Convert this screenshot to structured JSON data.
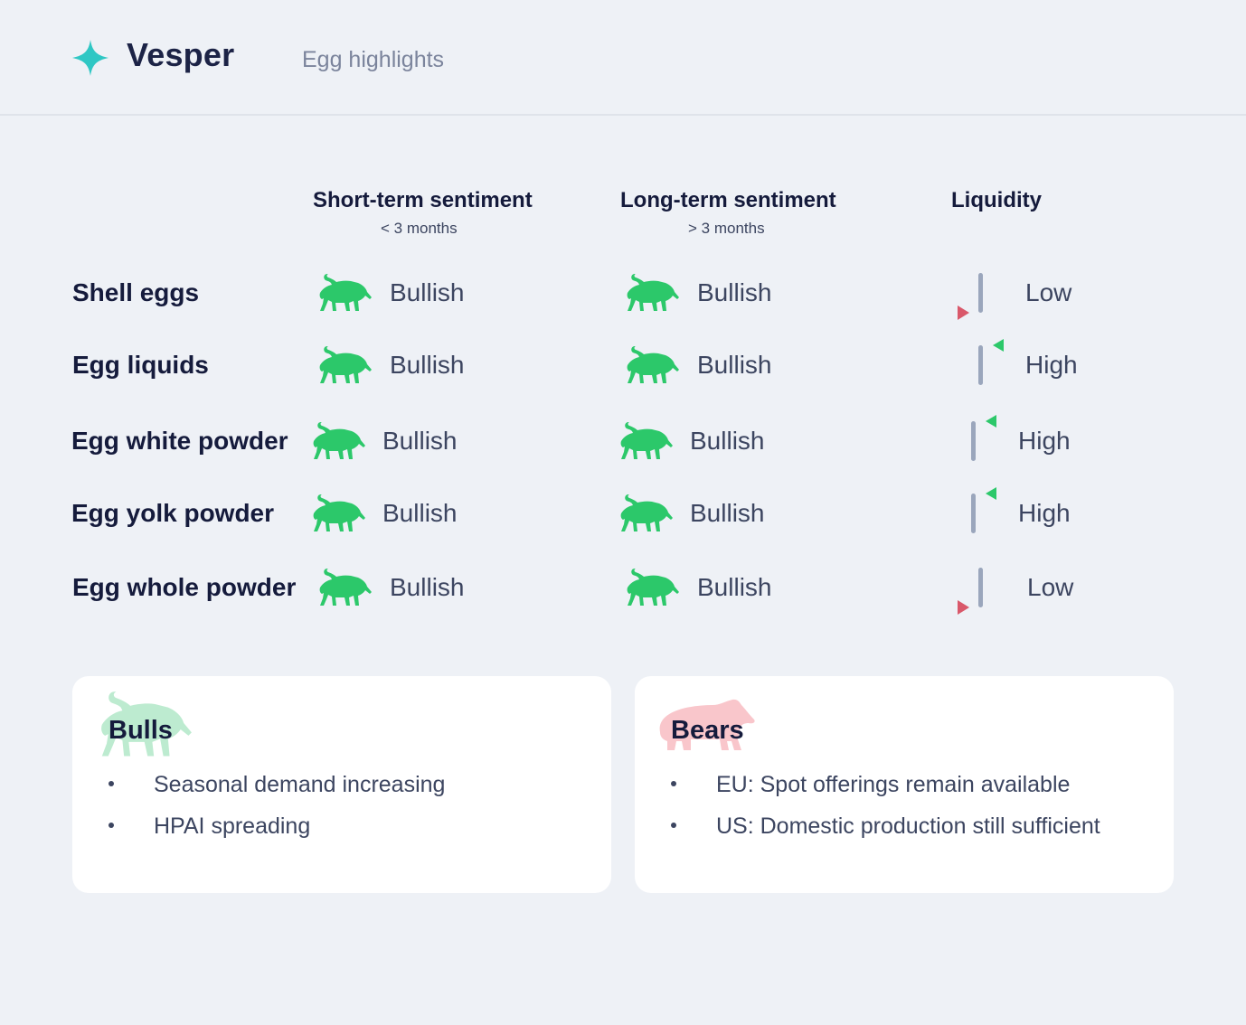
{
  "header": {
    "brand": "Vesper",
    "title": "Egg highlights"
  },
  "columns": {
    "short": {
      "label": "Short-term sentiment",
      "sub": "< 3 months"
    },
    "long": {
      "label": "Long-term sentiment",
      "sub": "> 3 months"
    },
    "liquidity": {
      "label": "Liquidity"
    }
  },
  "rows": [
    {
      "name": "Shell eggs",
      "short": "Bullish",
      "long": "Bullish",
      "liquidity": "Low",
      "liquidity_trend": "down"
    },
    {
      "name": "Egg liquids",
      "short": "Bullish",
      "long": "Bullish",
      "liquidity": "High",
      "liquidity_trend": "up"
    },
    {
      "name": "Egg white powder",
      "short": "Bullish",
      "long": "Bullish",
      "liquidity": "High",
      "liquidity_trend": "up"
    },
    {
      "name": "Egg yolk powder",
      "short": "Bullish",
      "long": "Bullish",
      "liquidity": "High",
      "liquidity_trend": "up"
    },
    {
      "name": "Egg whole powder",
      "short": "Bullish",
      "long": "Bullish",
      "liquidity": "Low",
      "liquidity_trend": "down"
    }
  ],
  "cards": {
    "bulls": {
      "title": "Bulls",
      "items": [
        "Seasonal demand increasing",
        "HPAI spreading"
      ]
    },
    "bears": {
      "title": "Bears",
      "items": [
        "EU: Spot offerings remain available",
        "US: Domestic production still sufficient"
      ]
    }
  },
  "colors": {
    "bull_green": "#2cc86a",
    "bear_red": "#d9586a",
    "accent_teal": "#2fc7c4",
    "background": "#eef1f6"
  },
  "icons": {
    "logo": "sparkle-icon",
    "bullish": "bull-icon",
    "bearish": "bear-icon"
  }
}
